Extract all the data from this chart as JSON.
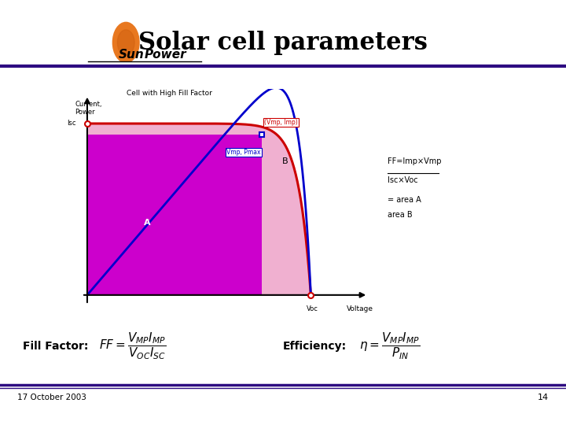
{
  "title": "Solar cell parameters",
  "title_fontsize": 22,
  "slide_bg": "#ffffff",
  "header_line_color": "#2e0d82",
  "footer_line_color": "#2e0d82",
  "date_text": "17 October 2003",
  "page_number": "14",
  "fill_factor_label": "Fill Factor:",
  "efficiency_label": "Efficiency:",
  "fill_factor_formula": "$FF = \\dfrac{V_{MP}I_{MP}}{V_{OC}I_{SC}}$",
  "efficiency_formula": "$\\eta = \\dfrac{V_{MP}I_{MP}}{P_{IN}}$",
  "plot_label_current": "Current,\nPower",
  "plot_label_voltage": "Voltage",
  "plot_label_voc": "Voc",
  "plot_label_isc": "Isc",
  "plot_label_vmp_imp": "(Vmp, Imp)",
  "plot_label_vmp_pmax": "Vmp, Pmax",
  "plot_label_A": "A",
  "plot_label_B": "B",
  "plot_title": "Cell with High Fill Factor",
  "ff_formula_line1": "FF=Imp×Vmp",
  "ff_formula_line2": "Isc×Voc",
  "ff_formula_line3": "= area A",
  "ff_formula_line4": "area B",
  "magenta_fill": "#cc00cc",
  "pink_fill": "#f0b0d0",
  "iv_curve_color": "#cc0000",
  "power_curve_color": "#0000cc",
  "sunpower_logo_orange": "#e87820",
  "Voc": 0.82,
  "Vmp": 0.64,
  "Isc": 0.9,
  "Imp": 0.84,
  "iv_sharpness": 18
}
